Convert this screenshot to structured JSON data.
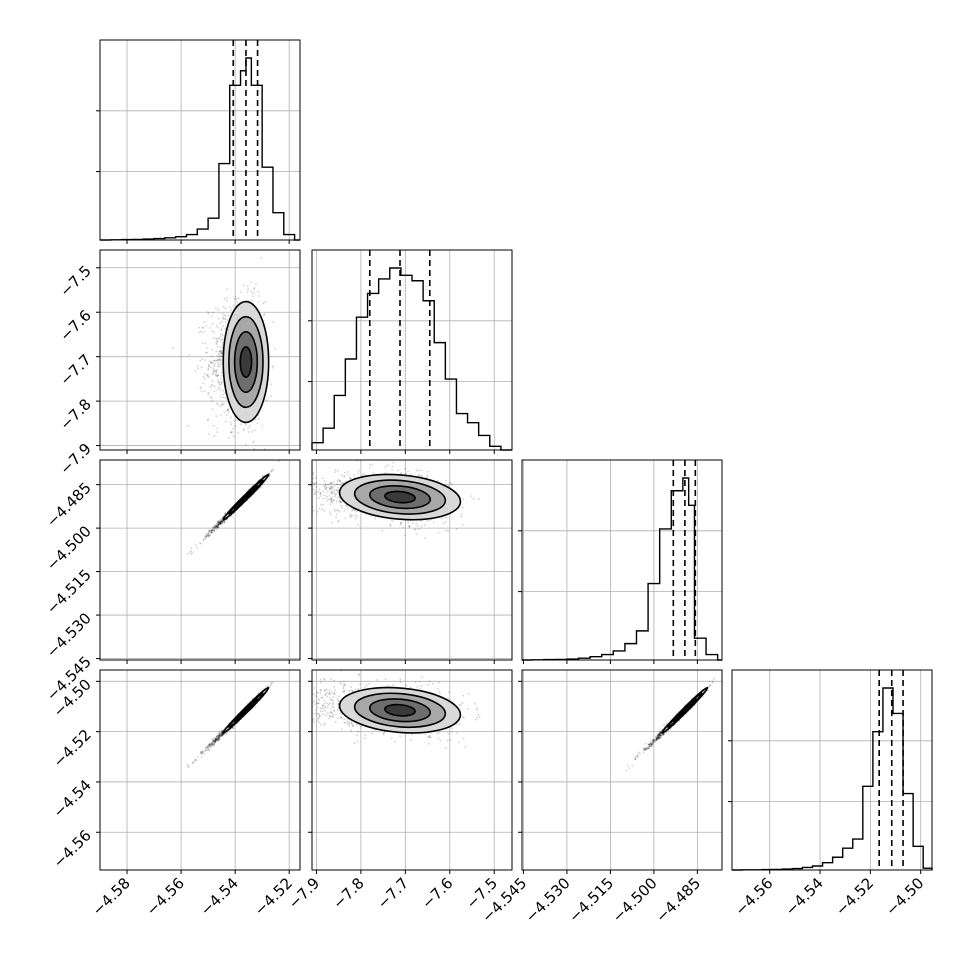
{
  "chart_data": {
    "type": "corner",
    "grid": true,
    "parameters": [
      {
        "xlim": [
          -4.59,
          -4.516
        ],
        "ticks": [
          -4.58,
          -4.56,
          -4.54,
          -4.52
        ],
        "tick_labels": [
          "−4.58",
          "−4.56",
          "−4.54",
          "−4.52"
        ],
        "mean": -4.536,
        "sd": 0.0042,
        "quantiles": [
          -4.5407,
          -4.536,
          -4.5317
        ],
        "hist_bins": [
          -4.59,
          -4.586,
          -4.582,
          -4.578,
          -4.574,
          -4.57,
          -4.566,
          -4.562,
          -4.558,
          -4.554,
          -4.55,
          -4.546,
          -4.542,
          -4.538,
          -4.536,
          -4.534,
          -4.53,
          -4.526,
          -4.522,
          -4.518,
          -4.516
        ],
        "hist_counts": [
          0,
          1,
          2,
          3,
          5,
          8,
          12,
          18,
          30,
          60,
          120,
          420,
          850,
          930,
          1000,
          850,
          400,
          150,
          30,
          0
        ]
      },
      {
        "xlim": [
          -7.91,
          -7.46
        ],
        "ticks": [
          -7.9,
          -7.8,
          -7.7,
          -7.6,
          -7.5
        ],
        "tick_labels": [
          "−7.9",
          "−7.8",
          "−7.7",
          "−7.6",
          "−7.5"
        ],
        "mean": -7.712,
        "sd": 0.068,
        "quantiles": [
          -7.78,
          -7.712,
          -7.645
        ],
        "hist_bins": [
          -7.91,
          -7.885,
          -7.86,
          -7.835,
          -7.81,
          -7.785,
          -7.76,
          -7.735,
          -7.71,
          -7.685,
          -7.66,
          -7.635,
          -7.61,
          -7.585,
          -7.56,
          -7.535,
          -7.51,
          -7.485,
          -7.46
        ],
        "hist_counts": [
          40,
          120,
          300,
          500,
          730,
          860,
          940,
          1000,
          960,
          930,
          820,
          590,
          390,
          200,
          150,
          80,
          20,
          0
        ]
      },
      {
        "xlim": [
          -4.5455,
          -4.4765
        ],
        "ticks": [
          -4.545,
          -4.53,
          -4.515,
          -4.5,
          -4.485
        ],
        "tick_labels": [
          "−4.545",
          "−4.530",
          "−4.515",
          "−4.500",
          "−4.485"
        ],
        "mean": -4.4893,
        "sd": 0.0039,
        "quantiles": [
          -4.4933,
          -4.4893,
          -4.4857
        ],
        "hist_bins": [
          -4.5455,
          -4.542,
          -4.538,
          -4.534,
          -4.53,
          -4.526,
          -4.522,
          -4.518,
          -4.514,
          -4.51,
          -4.506,
          -4.502,
          -4.498,
          -4.494,
          -4.49,
          -4.488,
          -4.486,
          -4.482,
          -4.478,
          -4.4765
        ],
        "hist_counts": [
          0,
          1,
          2,
          3,
          5,
          10,
          18,
          30,
          50,
          90,
          160,
          420,
          720,
          930,
          1000,
          850,
          120,
          30,
          0
        ]
      },
      {
        "xlim": [
          -4.575,
          -4.4955
        ],
        "ticks": [
          -4.56,
          -4.54,
          -4.52,
          -4.5
        ],
        "tick_labels": [
          "−4.56",
          "−4.54",
          "−4.52",
          "−4.50"
        ],
        "mean": -4.5115,
        "sd": 0.0045,
        "quantiles": [
          -4.5165,
          -4.5115,
          -4.507
        ],
        "hist_bins": [
          -4.575,
          -4.571,
          -4.567,
          -4.563,
          -4.559,
          -4.555,
          -4.551,
          -4.547,
          -4.543,
          -4.539,
          -4.535,
          -4.531,
          -4.527,
          -4.523,
          -4.519,
          -4.515,
          -4.511,
          -4.507,
          -4.503,
          -4.499,
          -4.4955
        ],
        "hist_counts": [
          0,
          1,
          1,
          2,
          3,
          5,
          8,
          14,
          22,
          40,
          70,
          120,
          170,
          460,
          760,
          1000,
          860,
          420,
          130,
          10
        ]
      }
    ],
    "pairs": [
      {
        "col": 0,
        "row": 1,
        "corr": 0.0
      },
      {
        "col": 0,
        "row": 2,
        "corr": 0.99
      },
      {
        "col": 1,
        "row": 2,
        "corr": -0.2
      },
      {
        "col": 0,
        "row": 3,
        "corr": 0.99
      },
      {
        "col": 1,
        "row": 3,
        "corr": -0.2
      },
      {
        "col": 2,
        "row": 3,
        "corr": 0.99
      }
    ],
    "contour_levels_sigma": [
      0.5,
      1.0,
      1.5,
      2.0
    ],
    "scatter_points": 1500,
    "line_color": "#000000",
    "grid_color": "#b0b0b0",
    "scatter_color": "#000000"
  }
}
